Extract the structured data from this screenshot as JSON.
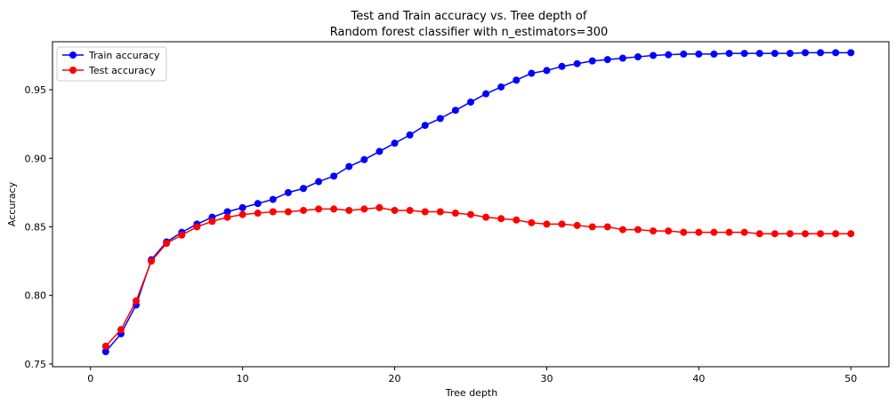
{
  "chart_data": {
    "type": "line",
    "title_line1": "Test and Train accuracy vs. Tree depth of",
    "title_line2": "Random forest classifier with n_estimators=300",
    "xlabel": "Tree depth",
    "ylabel": "Accuracy",
    "xlim": [
      -2.5,
      52.5
    ],
    "ylim": [
      0.748,
      0.985
    ],
    "xticks": [
      0,
      10,
      20,
      30,
      40,
      50
    ],
    "yticks": [
      0.75,
      0.8,
      0.85,
      0.9,
      0.95
    ],
    "ytick_labels": [
      "0.75",
      "0.80",
      "0.85",
      "0.90",
      "0.95"
    ],
    "legend_position": "top-left",
    "x": [
      1,
      2,
      3,
      4,
      5,
      6,
      7,
      8,
      9,
      10,
      11,
      12,
      13,
      14,
      15,
      16,
      17,
      18,
      19,
      20,
      21,
      22,
      23,
      24,
      25,
      26,
      27,
      28,
      29,
      30,
      31,
      32,
      33,
      34,
      35,
      36,
      37,
      38,
      39,
      40,
      41,
      42,
      43,
      44,
      45,
      46,
      47,
      48,
      49,
      50
    ],
    "series": [
      {
        "name": "Train accuracy",
        "color": "#0000ff",
        "values": [
          0.759,
          0.772,
          0.793,
          0.826,
          0.839,
          0.846,
          0.852,
          0.857,
          0.861,
          0.864,
          0.867,
          0.87,
          0.875,
          0.878,
          0.883,
          0.887,
          0.894,
          0.899,
          0.905,
          0.911,
          0.917,
          0.924,
          0.929,
          0.935,
          0.941,
          0.947,
          0.952,
          0.957,
          0.962,
          0.964,
          0.967,
          0.969,
          0.971,
          0.972,
          0.973,
          0.974,
          0.975,
          0.9755,
          0.976,
          0.976,
          0.976,
          0.9765,
          0.9765,
          0.9765,
          0.9765,
          0.9765,
          0.977,
          0.977,
          0.977,
          0.977
        ]
      },
      {
        "name": "Test accuracy",
        "color": "#ff0000",
        "values": [
          0.763,
          0.775,
          0.796,
          0.825,
          0.838,
          0.844,
          0.85,
          0.854,
          0.857,
          0.859,
          0.86,
          0.861,
          0.861,
          0.862,
          0.863,
          0.863,
          0.862,
          0.863,
          0.864,
          0.862,
          0.862,
          0.861,
          0.861,
          0.86,
          0.859,
          0.857,
          0.856,
          0.855,
          0.853,
          0.852,
          0.852,
          0.851,
          0.85,
          0.85,
          0.848,
          0.848,
          0.847,
          0.847,
          0.846,
          0.846,
          0.846,
          0.846,
          0.846,
          0.845,
          0.845,
          0.845,
          0.845,
          0.845,
          0.845,
          0.845
        ]
      }
    ]
  }
}
